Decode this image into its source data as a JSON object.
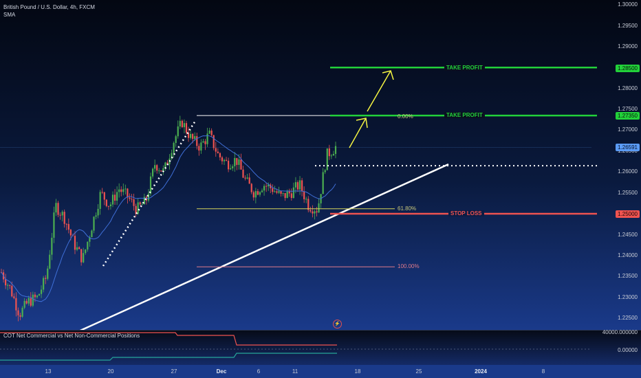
{
  "chart_title": "British Pound / U.S. Dollar, 4h, FXCM",
  "indicator_name": "SMA",
  "indicator2_title": "COT Net Commercial vs Net Non-Commercial Positions",
  "price_axis": [
    "1.30000",
    "1.29500",
    "1.29000",
    "1.28000",
    "1.27500",
    "1.27000",
    "1.26500",
    "1.26000",
    "1.25500",
    "1.24500",
    "1.24000",
    "1.23500",
    "1.23000",
    "1.22500"
  ],
  "price_tags": {
    "tp_high": "1.28500",
    "tp_low": "1.27350",
    "current": "1.26591",
    "stop": "1.25000"
  },
  "annotations": {
    "take_profit_1": "TAKE PROFIT",
    "take_profit_2": "TAKE PROFIT",
    "stop_loss": "STOP LOSS",
    "fib_0": "0.00%",
    "fib_618": "61.80%",
    "fib_100": "100.00%"
  },
  "indicator_axis": [
    "40000.000000",
    "0.00000"
  ],
  "time_axis": [
    "13",
    "20",
    "27",
    "Dec",
    "6",
    "11",
    "18",
    "25",
    "2024",
    "8"
  ],
  "colors": {
    "take_profit": "#22d13a",
    "stop_loss": "#ef5350",
    "current_price": "#5b9cf6",
    "bull_candle": "#4caf50",
    "bear_candle": "#ef5350",
    "sma": "#3f6fd8",
    "trendline": "#ffffff",
    "arrow": "#f5f542"
  },
  "chart_data": {
    "type": "candlestick",
    "symbol": "British Pound / U.S. Dollar",
    "timeframe": "4h",
    "ylim": [
      1.222,
      1.3
    ],
    "levels": {
      "take_profit_high": 1.285,
      "take_profit_low": 1.2735,
      "current": 1.26591,
      "stop_loss": 1.25,
      "fib_0": 1.2735,
      "fib_618": 1.2512,
      "fib_100": 1.2373,
      "breakout": 1.2615
    },
    "close_path": [
      1.236,
      1.232,
      1.226,
      1.229,
      1.23,
      1.235,
      1.252,
      1.249,
      1.243,
      1.239,
      1.247,
      1.255,
      1.252,
      1.256,
      1.254,
      1.251,
      1.253,
      1.262,
      1.26,
      1.267,
      1.272,
      1.268,
      1.266,
      1.269,
      1.264,
      1.262,
      1.263,
      1.258,
      1.255,
      1.257,
      1.256,
      1.254,
      1.255,
      1.257,
      1.252,
      1.251,
      1.264,
      1.266
    ]
  }
}
